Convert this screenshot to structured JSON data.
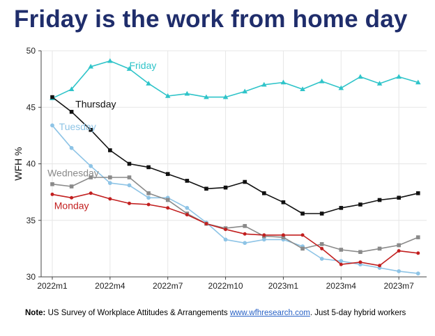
{
  "title": "Friday is the work from home day",
  "note": {
    "label": "Note:",
    "text_before": " US Survey of Workplace Attitudes & Arrangements ",
    "link_text": "www.wfhresearch.com",
    "text_after": ". Just 5-day hybrid workers"
  },
  "chart_data": {
    "type": "line",
    "ylabel": "WFH %",
    "xlabel": "",
    "ylim": [
      30,
      50
    ],
    "yticks": [
      30,
      35,
      40,
      45,
      50
    ],
    "xlim": [
      0,
      20
    ],
    "xticks": [
      {
        "value": 0,
        "label": "2022m1"
      },
      {
        "value": 3,
        "label": "2022m4"
      },
      {
        "value": 6,
        "label": "2022m7"
      },
      {
        "value": 9,
        "label": "2022m10"
      },
      {
        "value": 12,
        "label": "2023m1"
      },
      {
        "value": 15,
        "label": "2023m4"
      },
      {
        "value": 18,
        "label": "2023m7"
      }
    ],
    "x": [
      0,
      1,
      2,
      3,
      4,
      5,
      6,
      7,
      8,
      9,
      10,
      11,
      12,
      13,
      14,
      15,
      16,
      17,
      18,
      19
    ],
    "grid": true,
    "series": [
      {
        "name": "Friday",
        "color": "#2fc4c9",
        "marker": "triangle",
        "values": [
          45.8,
          46.6,
          48.6,
          49.1,
          48.4,
          47.1,
          46.0,
          46.2,
          45.9,
          45.9,
          46.4,
          47.0,
          47.2,
          46.6,
          47.3,
          46.7,
          47.7,
          47.1,
          47.7,
          47.2
        ]
      },
      {
        "name": "Thursday",
        "color": "#111111",
        "marker": "square",
        "values": [
          45.9,
          44.6,
          43.0,
          41.2,
          40.0,
          39.7,
          39.1,
          38.5,
          37.8,
          37.9,
          38.4,
          37.4,
          36.6,
          35.6,
          35.6,
          36.1,
          36.4,
          36.8,
          37.0,
          37.4
        ]
      },
      {
        "name": "Tuesday",
        "color": "#8ec4e6",
        "marker": "circle",
        "values": [
          43.4,
          41.4,
          39.8,
          38.3,
          38.1,
          37.0,
          37.0,
          36.1,
          34.8,
          33.3,
          33.0,
          33.3,
          33.3,
          32.7,
          31.6,
          31.4,
          31.1,
          30.8,
          30.5,
          30.3
        ]
      },
      {
        "name": "Wednesday",
        "color": "#8a8a8a",
        "marker": "square",
        "values": [
          38.2,
          38.0,
          38.8,
          38.8,
          38.8,
          37.4,
          36.8,
          35.6,
          34.7,
          34.3,
          34.5,
          33.6,
          33.5,
          32.5,
          32.9,
          32.4,
          32.2,
          32.5,
          32.8,
          33.5
        ]
      },
      {
        "name": "Monday",
        "color": "#c21f1f",
        "marker": "diamond",
        "values": [
          37.3,
          37.0,
          37.4,
          36.9,
          36.5,
          36.4,
          36.1,
          35.5,
          34.7,
          34.2,
          33.8,
          33.7,
          33.7,
          33.7,
          32.5,
          31.1,
          31.3,
          31.0,
          32.3,
          32.1
        ]
      }
    ],
    "series_labels": [
      {
        "series": 0,
        "text": "Friday",
        "at": [
          4.0,
          48.4
        ]
      },
      {
        "series": 1,
        "text": "Thursday",
        "at": [
          1.2,
          45.0
        ]
      },
      {
        "series": 2,
        "text": "Tuesday",
        "at": [
          0.35,
          43.0
        ]
      },
      {
        "series": 3,
        "text": "Wednesday",
        "at": [
          -0.25,
          38.9
        ]
      },
      {
        "series": 4,
        "text": "Monday",
        "at": [
          0.1,
          36.0
        ]
      }
    ]
  }
}
